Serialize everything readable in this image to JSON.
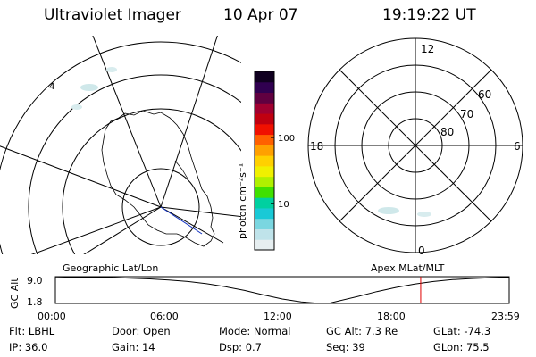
{
  "header": {
    "title": "Ultraviolet Imager",
    "date": "10 Apr 07",
    "time": "19:19:22 UT"
  },
  "geo_panel": {
    "label": "Geographic Lat/Lon"
  },
  "apex_panel": {
    "label": "Apex MLat/MLT",
    "mlt_labels": [
      "12",
      "18",
      "6",
      "0"
    ],
    "lat_labels": [
      "60",
      "70",
      "80"
    ]
  },
  "colorbar": {
    "label": "photon cm⁻²s⁻¹",
    "ticks": [
      {
        "label": "100",
        "value": 100
      },
      {
        "label": "10",
        "value": 10
      }
    ],
    "range": [
      2,
      1000
    ],
    "scale": "log",
    "colors": [
      "#e6eef0",
      "#bfe3ea",
      "#7ad6e0",
      "#19c9d6",
      "#00d0a0",
      "#40e000",
      "#b0f000",
      "#f0f000",
      "#ffd000",
      "#ffa000",
      "#ff6000",
      "#f01000",
      "#c00010",
      "#a00030",
      "#600040",
      "#300050",
      "#100020"
    ]
  },
  "altitude_plot": {
    "ylabel": "GC Alt",
    "yticks": [
      "9.0",
      "1.8"
    ],
    "xticks": [
      "00:00",
      "06:00",
      "12:00",
      "18:00",
      "23:59"
    ],
    "current_marker_color": "#e00000"
  },
  "chart_data": {
    "type": "line",
    "title": "",
    "xlabel": "",
    "ylabel": "GC Alt",
    "x_unit": "hours UT",
    "xlim": [
      0,
      24
    ],
    "ylim": [
      1.8,
      9.0
    ],
    "series": [
      {
        "x": [
          0,
          1,
          2,
          3,
          4,
          5,
          6,
          7,
          8,
          9,
          10,
          11,
          12,
          13,
          14,
          14.5,
          15,
          16,
          17,
          18,
          19,
          20,
          21,
          22,
          23,
          23.98
        ],
        "values": [
          8.7,
          8.8,
          8.8,
          8.75,
          8.6,
          8.4,
          8.1,
          7.7,
          7.1,
          6.3,
          5.3,
          4.1,
          3.0,
          2.2,
          1.8,
          1.9,
          2.5,
          3.7,
          5.0,
          6.1,
          7.0,
          7.7,
          8.2,
          8.5,
          8.7,
          8.8
        ]
      }
    ],
    "current_time": 19.32
  },
  "footer": {
    "row1": [
      {
        "label": "Flt:",
        "value": "LBHL"
      },
      {
        "label": "Door:",
        "value": "Open"
      },
      {
        "label": "Mode:",
        "value": "Normal"
      },
      {
        "label": "GC Alt:",
        "value": "7.3 Re"
      },
      {
        "label": "GLat:",
        "value": "-74.3"
      }
    ],
    "row2": [
      {
        "label": "IP:",
        "value": "36.0"
      },
      {
        "label": "Gain:",
        "value": "14"
      },
      {
        "label": "Dsp:",
        "value": "0.7"
      },
      {
        "label": "Seq:",
        "value": "39"
      },
      {
        "label": "GLon:",
        "value": "75.5"
      }
    ]
  }
}
